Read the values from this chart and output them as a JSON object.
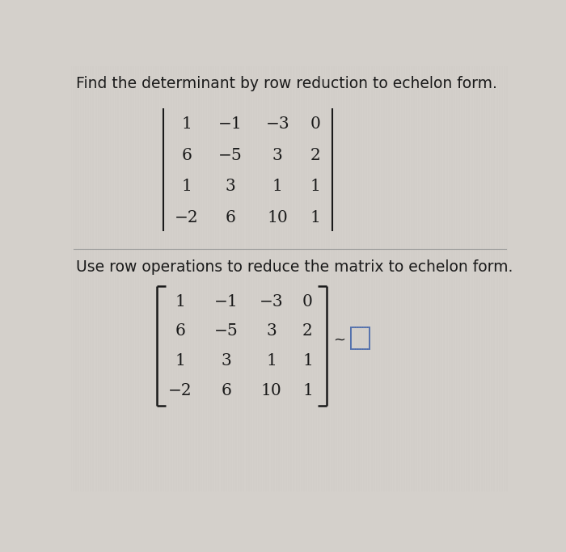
{
  "title": "Find the determinant by row reduction to echelon form.",
  "subtitle": "Use row operations to reduce the matrix to echelon form.",
  "matrix": [
    [
      "1",
      "−1",
      "−3",
      "0"
    ],
    [
      "6",
      "−5",
      "3",
      "2"
    ],
    [
      "1",
      "3",
      "1",
      "1"
    ],
    [
      "−2",
      "6",
      "10",
      "1"
    ]
  ],
  "bg_color": "#d4d0cb",
  "text_color": "#1a1a1a",
  "divider_color": "#999999",
  "box_color": "#4466aa",
  "title_fontsize": 13.5,
  "matrix_fontsize": 13.5,
  "subtitle_fontsize": 13.5
}
